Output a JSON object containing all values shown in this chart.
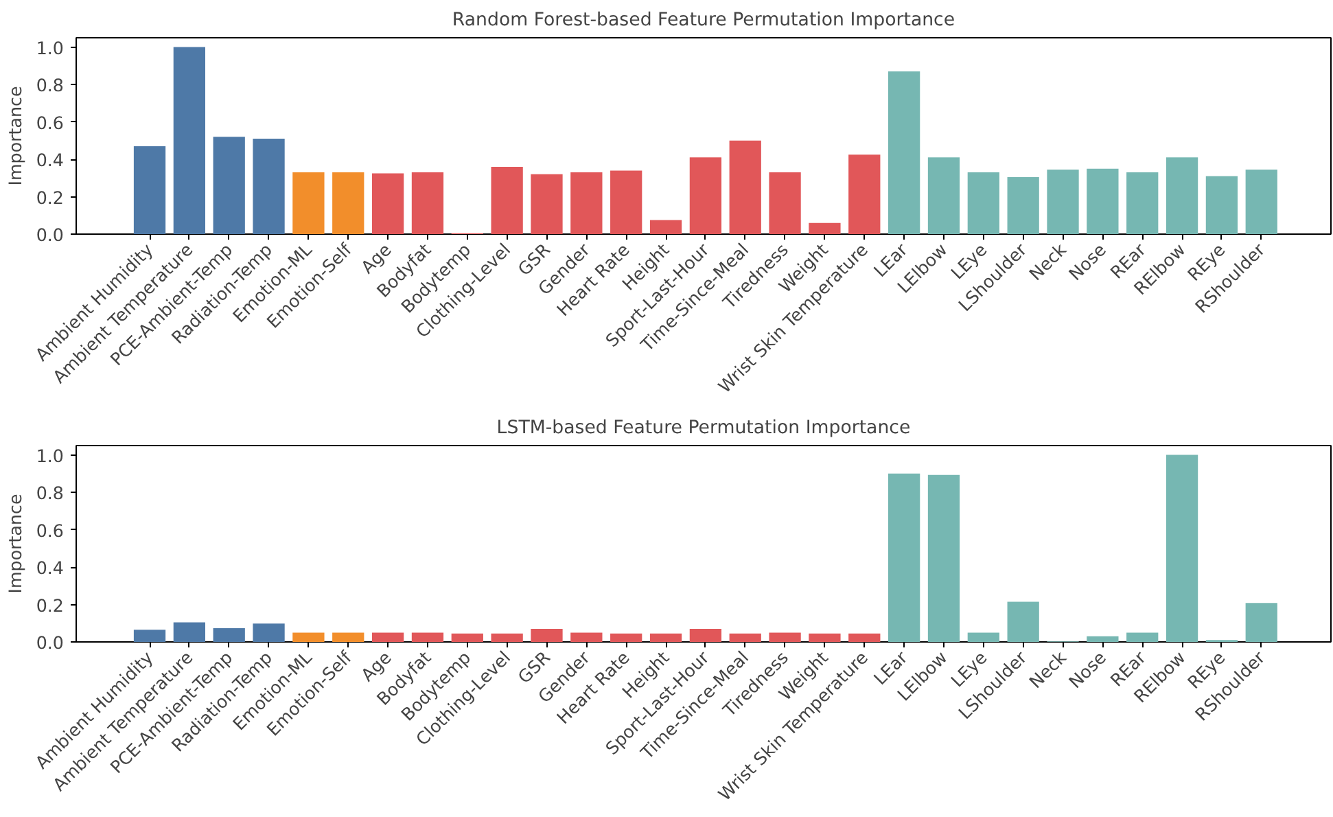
{
  "chart_data": [
    {
      "type": "bar",
      "title": "Random Forest-based Feature Permutation Importance",
      "ylabel": "Importance",
      "categories": [
        "Ambient Humidity",
        "Ambient Temperature",
        "PCE-Ambient-Temp",
        "Radiation-Temp",
        "Emotion-ML",
        "Emotion-Self",
        "Age",
        "Bodyfat",
        "Bodytemp",
        "Clothing-Level",
        "GSR",
        "Gender",
        "Heart Rate",
        "Height",
        "Sport-Last-Hour",
        "Time-Since-Meal",
        "Tiredness",
        "Weight",
        "Wrist Skin Temperature",
        "LEar",
        "LElbow",
        "LEye",
        "LShoulder",
        "Neck",
        "Nose",
        "REar",
        "RElbow",
        "REye",
        "RShoulder"
      ],
      "values": [
        0.47,
        1.0,
        0.52,
        0.51,
        0.33,
        0.33,
        0.325,
        0.33,
        0.005,
        0.36,
        0.32,
        0.33,
        0.34,
        0.075,
        0.41,
        0.5,
        0.33,
        0.06,
        0.425,
        0.87,
        0.41,
        0.33,
        0.305,
        0.345,
        0.35,
        0.33,
        0.41,
        0.31,
        0.345
      ],
      "colors": [
        "#4e79a7",
        "#4e79a7",
        "#4e79a7",
        "#4e79a7",
        "#f28e2b",
        "#f28e2b",
        "#e15759",
        "#e15759",
        "#e15759",
        "#e15759",
        "#e15759",
        "#e15759",
        "#e15759",
        "#e15759",
        "#e15759",
        "#e15759",
        "#e15759",
        "#e15759",
        "#e15759",
        "#76b7b2",
        "#76b7b2",
        "#76b7b2",
        "#76b7b2",
        "#76b7b2",
        "#76b7b2",
        "#76b7b2",
        "#76b7b2",
        "#76b7b2",
        "#76b7b2"
      ],
      "ylim": [
        0,
        1.05
      ],
      "yticks": [
        {
          "value": 0,
          "label": "0.0"
        },
        {
          "value": 0.2,
          "label": "0.2"
        },
        {
          "value": 0.4,
          "label": "0.4"
        },
        {
          "value": 0.6,
          "label": "0.6"
        },
        {
          "value": 0.8,
          "label": "0.8"
        },
        {
          "value": 1.0,
          "label": "1.0"
        }
      ],
      "grid": false
    },
    {
      "type": "bar",
      "title": "LSTM-based Feature Permutation Importance",
      "ylabel": "Importance",
      "categories": [
        "Ambient Humidity",
        "Ambient Temperature",
        "PCE-Ambient-Temp",
        "Radiation-Temp",
        "Emotion-ML",
        "Emotion-Self",
        "Age",
        "Bodyfat",
        "Bodytemp",
        "Clothing-Level",
        "GSR",
        "Gender",
        "Heart Rate",
        "Height",
        "Sport-Last-Hour",
        "Time-Since-Meal",
        "Tiredness",
        "Weight",
        "Wrist Skin Temperature",
        "LEar",
        "LElbow",
        "LEye",
        "LShoulder",
        "Neck",
        "Nose",
        "REar",
        "RElbow",
        "REye",
        "RShoulder"
      ],
      "values": [
        0.065,
        0.105,
        0.073,
        0.098,
        0.05,
        0.05,
        0.05,
        0.05,
        0.045,
        0.045,
        0.07,
        0.05,
        0.045,
        0.045,
        0.07,
        0.045,
        0.05,
        0.045,
        0.045,
        0.9,
        0.893,
        0.05,
        0.215,
        0.003,
        0.03,
        0.05,
        1.0,
        0.01,
        0.208
      ],
      "colors": [
        "#4e79a7",
        "#4e79a7",
        "#4e79a7",
        "#4e79a7",
        "#f28e2b",
        "#f28e2b",
        "#e15759",
        "#e15759",
        "#e15759",
        "#e15759",
        "#e15759",
        "#e15759",
        "#e15759",
        "#e15759",
        "#e15759",
        "#e15759",
        "#e15759",
        "#e15759",
        "#e15759",
        "#76b7b2",
        "#76b7b2",
        "#76b7b2",
        "#76b7b2",
        "#76b7b2",
        "#76b7b2",
        "#76b7b2",
        "#76b7b2",
        "#76b7b2",
        "#76b7b2"
      ],
      "ylim": [
        0,
        1.05
      ],
      "yticks": [
        {
          "value": 0,
          "label": "0.0"
        },
        {
          "value": 0.2,
          "label": "0.2"
        },
        {
          "value": 0.4,
          "label": "0.4"
        },
        {
          "value": 0.6,
          "label": "0.6"
        },
        {
          "value": 0.8,
          "label": "0.8"
        },
        {
          "value": 1.0,
          "label": "1.0"
        }
      ],
      "grid": false
    }
  ]
}
